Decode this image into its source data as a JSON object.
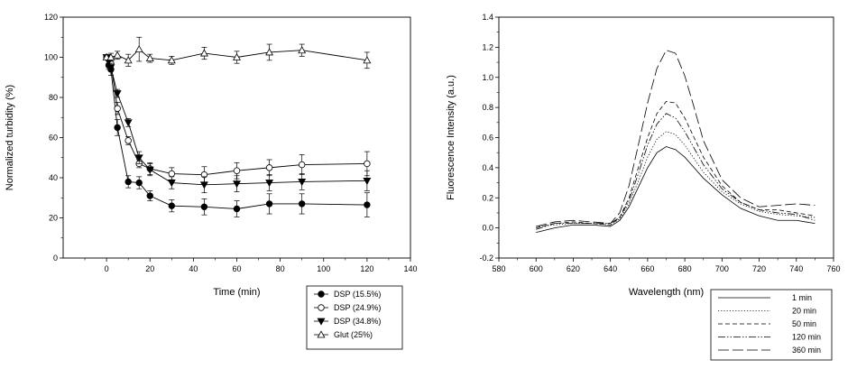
{
  "chart_data": [
    {
      "type": "line",
      "xlabel": "Time (min)",
      "ylabel": "Normalized turbidity (%)",
      "xlim": [
        -20,
        140
      ],
      "ylim": [
        0,
        120
      ],
      "xticks": [
        0,
        20,
        40,
        60,
        80,
        100,
        120,
        140
      ],
      "yticks": [
        0,
        20,
        40,
        60,
        80,
        100,
        120
      ],
      "grid": false,
      "legend_position": "below-right",
      "series": [
        {
          "name": "DSP (15.5%)",
          "marker": "filled-circle",
          "x": [
            0,
            1,
            2,
            5,
            10,
            15,
            20,
            30,
            45,
            60,
            75,
            90,
            120
          ],
          "y": [
            100,
            96,
            94,
            65,
            38,
            37.5,
            31,
            26,
            25.5,
            24.5,
            27,
            27,
            26.5
          ],
          "err": [
            1,
            2,
            3,
            4,
            3,
            3,
            2.5,
            3,
            4,
            4,
            5,
            5,
            6
          ]
        },
        {
          "name": "DSP (24.9%)",
          "marker": "open-circle",
          "x": [
            0,
            1,
            2,
            5,
            10,
            15,
            20,
            30,
            45,
            60,
            75,
            90,
            120
          ],
          "y": [
            100,
            99,
            97,
            74.5,
            58.5,
            47,
            44.5,
            42,
            41.5,
            43.5,
            45,
            46.5,
            47
          ],
          "err": [
            1,
            2,
            2,
            3,
            2,
            2,
            3,
            3,
            4,
            4,
            4,
            5,
            6
          ]
        },
        {
          "name": "DSP (34.8%)",
          "marker": "filled-triangle-down",
          "x": [
            0,
            1,
            2,
            5,
            10,
            15,
            20,
            30,
            45,
            60,
            75,
            90,
            120
          ],
          "y": [
            100,
            98,
            95,
            82,
            67.5,
            50,
            44,
            37.5,
            36.5,
            37,
            37.5,
            38,
            38.5
          ],
          "err": [
            1,
            2,
            2,
            2,
            2,
            3,
            3,
            3,
            4,
            4,
            4,
            4,
            5
          ]
        },
        {
          "name": "Glut (25%)",
          "marker": "open-triangle-up",
          "x": [
            0,
            2,
            5,
            10,
            15,
            20,
            30,
            45,
            60,
            75,
            90,
            120
          ],
          "y": [
            100,
            100,
            101,
            98.5,
            104,
            99.5,
            98.5,
            102,
            100,
            102.5,
            103.5,
            98.5
          ],
          "err": [
            1,
            2,
            2,
            3,
            6,
            2,
            2,
            3,
            3,
            4,
            3,
            4
          ]
        }
      ]
    },
    {
      "type": "line",
      "xlabel": "Wavelength (nm)",
      "ylabel": "Fluorescence Intensity (a.u.)",
      "xlim": [
        580,
        760
      ],
      "ylim": [
        -0.2,
        1.4
      ],
      "xticks": [
        580,
        600,
        620,
        640,
        660,
        680,
        700,
        720,
        740,
        760
      ],
      "yticks": [
        -0.2,
        0.0,
        0.2,
        0.4,
        0.6,
        0.8,
        1.0,
        1.2,
        1.4
      ],
      "grid": false,
      "legend_position": "below-right",
      "series": [
        {
          "name": "1 min",
          "dash": "solid",
          "x": [
            600,
            610,
            620,
            630,
            640,
            645,
            650,
            655,
            660,
            665,
            670,
            675,
            680,
            685,
            690,
            700,
            710,
            720,
            730,
            740,
            750
          ],
          "y": [
            -0.03,
            0.0,
            0.02,
            0.02,
            0.01,
            0.05,
            0.14,
            0.27,
            0.4,
            0.5,
            0.54,
            0.52,
            0.47,
            0.4,
            0.33,
            0.22,
            0.13,
            0.08,
            0.05,
            0.05,
            0.03
          ]
        },
        {
          "name": "20 min",
          "dash": "dotted",
          "x": [
            600,
            610,
            620,
            630,
            640,
            645,
            650,
            655,
            660,
            665,
            670,
            675,
            680,
            685,
            690,
            700,
            710,
            720,
            730,
            740,
            750
          ],
          "y": [
            0.01,
            0.02,
            0.03,
            0.03,
            0.02,
            0.06,
            0.16,
            0.31,
            0.47,
            0.59,
            0.64,
            0.62,
            0.55,
            0.46,
            0.37,
            0.24,
            0.16,
            0.11,
            0.09,
            0.08,
            0.07
          ]
        },
        {
          "name": "50 min",
          "dash": "short-dash",
          "x": [
            600,
            610,
            620,
            630,
            640,
            645,
            650,
            655,
            660,
            665,
            670,
            675,
            680,
            685,
            690,
            700,
            710,
            720,
            730,
            740,
            750
          ],
          "y": [
            0.0,
            0.03,
            0.04,
            0.03,
            0.02,
            0.07,
            0.2,
            0.4,
            0.6,
            0.76,
            0.84,
            0.83,
            0.73,
            0.6,
            0.47,
            0.28,
            0.17,
            0.12,
            0.12,
            0.1,
            0.08
          ]
        },
        {
          "name": "120 min",
          "dash": "dash-dot-dot",
          "x": [
            600,
            610,
            620,
            630,
            640,
            645,
            650,
            655,
            660,
            665,
            670,
            675,
            680,
            685,
            690,
            700,
            710,
            720,
            730,
            740,
            750
          ],
          "y": [
            -0.01,
            0.03,
            0.03,
            0.03,
            0.03,
            0.07,
            0.18,
            0.36,
            0.55,
            0.69,
            0.76,
            0.73,
            0.64,
            0.53,
            0.42,
            0.26,
            0.17,
            0.12,
            0.1,
            0.09,
            0.05
          ]
        },
        {
          "name": "360 min",
          "dash": "long-dash",
          "x": [
            600,
            610,
            620,
            630,
            640,
            645,
            650,
            655,
            660,
            665,
            670,
            675,
            680,
            685,
            690,
            700,
            710,
            720,
            730,
            740,
            750
          ],
          "y": [
            0.01,
            0.04,
            0.05,
            0.04,
            0.03,
            0.1,
            0.28,
            0.55,
            0.83,
            1.06,
            1.18,
            1.16,
            1.01,
            0.8,
            0.58,
            0.32,
            0.2,
            0.14,
            0.15,
            0.16,
            0.15
          ]
        }
      ]
    }
  ]
}
